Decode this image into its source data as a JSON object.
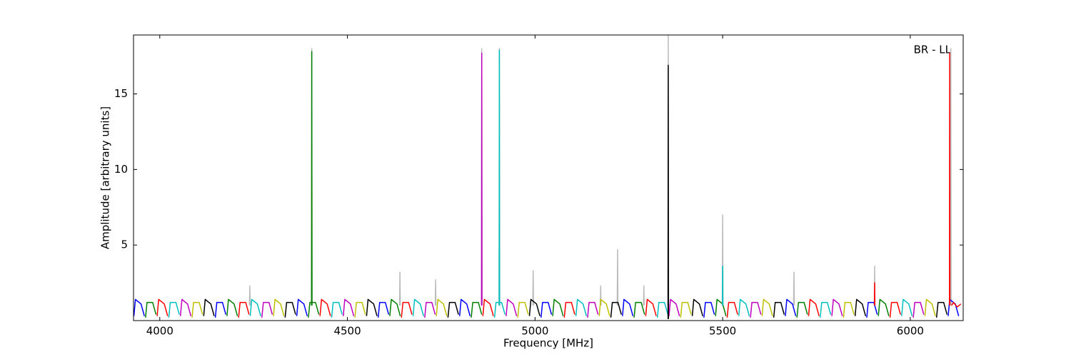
{
  "chart_data": {
    "type": "line",
    "xlabel": "Frequency [MHz]",
    "ylabel": "Amplitude [arbitrary units]",
    "annotation": "BR - LL",
    "xlim": [
      3930,
      6141
    ],
    "xticks": [
      4000,
      4500,
      5000,
      5500,
      6000
    ],
    "ylim": [
      0,
      18.9
    ],
    "yticks": [
      5,
      10,
      15
    ],
    "series": [
      {
        "color": "#bbbbbb",
        "x": [
          4239,
          4240,
          4241,
          null,
          4404,
          4405,
          4406,
          null,
          4639,
          4640,
          4641,
          null,
          4734,
          4735,
          4736,
          null,
          4857,
          4858,
          4859,
          null,
          4904,
          4905,
          4906,
          null,
          4994,
          4995,
          4996,
          null,
          5174,
          5175,
          5176,
          null,
          5219,
          5220,
          5221,
          null,
          5289,
          5290,
          5291,
          null,
          5354,
          5355,
          5356,
          null,
          5499,
          5500,
          5501,
          null,
          5689,
          5690,
          5691,
          null,
          5904,
          5905,
          5906,
          null,
          6107,
          6108,
          6109
        ],
        "values": [
          1.0,
          2.3,
          1.0,
          null,
          1.0,
          18.0,
          1.0,
          null,
          1.0,
          3.2,
          1.0,
          null,
          1.0,
          2.7,
          1.0,
          null,
          1.0,
          18.0,
          1.0,
          null,
          1.0,
          18.0,
          1.0,
          null,
          1.0,
          3.3,
          1.0,
          null,
          1.0,
          2.3,
          1.0,
          null,
          1.0,
          4.7,
          1.0,
          null,
          1.0,
          2.3,
          1.0,
          null,
          1.0,
          18.9,
          1.0,
          null,
          1.0,
          7.0,
          1.0,
          null,
          1.0,
          3.2,
          1.0,
          null,
          1.0,
          3.6,
          1.0,
          null,
          1.0,
          18.0,
          1.0
        ]
      },
      {
        "color": "#0000ff",
        "x": [
          3931,
          3935,
          3950,
          3959,
          null,
          4148,
          4152,
          4167,
          4176,
          null,
          4365,
          4369,
          4384,
          4393,
          null,
          4582,
          4586,
          4601,
          4610,
          null,
          4799,
          4803,
          4818,
          4827,
          null,
          5016,
          5020,
          5035,
          5044,
          null,
          5233,
          5237,
          5252,
          5261,
          null,
          5450,
          5454,
          5469,
          5478,
          null,
          5667,
          5671,
          5686,
          5695,
          null,
          5884,
          5888,
          5903,
          5912,
          null,
          6101,
          6105,
          6120,
          6129
        ],
        "values": [
          0.3,
          1.4,
          1.1,
          0.3,
          null,
          0.2,
          1.2,
          1.2,
          0.4,
          null,
          0.3,
          1.4,
          1.1,
          0.3,
          null,
          0.2,
          1.2,
          1.2,
          0.4,
          null,
          0.3,
          1.4,
          1.1,
          0.3,
          null,
          0.2,
          1.2,
          1.2,
          0.4,
          null,
          0.3,
          1.4,
          1.1,
          0.3,
          null,
          0.2,
          1.2,
          1.2,
          0.4,
          null,
          0.3,
          1.4,
          1.1,
          0.3,
          null,
          0.2,
          1.2,
          1.2,
          0.4,
          null,
          0.3,
          1.4,
          1.1,
          0.3
        ]
      },
      {
        "color": "#008000",
        "x": [
          3962,
          3966,
          3981,
          3990,
          null,
          4179,
          4183,
          4198,
          4207,
          null,
          4396,
          4400,
          4415,
          4424,
          null,
          4613,
          4617,
          4632,
          4641,
          null,
          4830,
          4834,
          4849,
          4858,
          null,
          5047,
          5051,
          5066,
          5075,
          null,
          5264,
          5268,
          5283,
          5292,
          null,
          5481,
          5485,
          5500,
          5509,
          null,
          5698,
          5702,
          5717,
          5726,
          null,
          5915,
          5919,
          5934,
          5943,
          null,
          4404.5,
          4405,
          4405.5
        ],
        "values": [
          0.2,
          1.2,
          1.2,
          0.4,
          null,
          0.3,
          1.4,
          1.1,
          0.3,
          null,
          0.2,
          1.2,
          1.2,
          0.4,
          null,
          0.3,
          1.4,
          1.1,
          0.3,
          null,
          0.2,
          1.2,
          1.2,
          0.4,
          null,
          0.3,
          1.4,
          1.1,
          0.3,
          null,
          0.2,
          1.2,
          1.2,
          0.4,
          null,
          0.3,
          1.4,
          1.1,
          0.3,
          null,
          0.2,
          1.2,
          1.2,
          0.4,
          null,
          0.3,
          1.4,
          1.1,
          0.3,
          null,
          1.0,
          17.8,
          1.0
        ]
      },
      {
        "color": "#ff0000",
        "x": [
          3993,
          3997,
          4012,
          4021,
          null,
          4210,
          4214,
          4229,
          4238,
          null,
          4427,
          4431,
          4446,
          4455,
          null,
          4644,
          4648,
          4663,
          4672,
          null,
          4861,
          4865,
          4880,
          4889,
          null,
          5078,
          5082,
          5097,
          5106,
          null,
          5295,
          5299,
          5314,
          5323,
          null,
          5512,
          5516,
          5531,
          5540,
          null,
          5729,
          5733,
          5748,
          5757,
          null,
          5946,
          5950,
          5965,
          5974,
          null,
          5904.5,
          5905,
          5905.5,
          null,
          6104.5,
          6105,
          6105.5,
          null,
          6110,
          6115,
          6125,
          6135
        ],
        "values": [
          0.3,
          1.4,
          1.1,
          0.3,
          null,
          0.2,
          1.2,
          1.2,
          0.4,
          null,
          0.3,
          1.4,
          1.1,
          0.3,
          null,
          0.2,
          1.2,
          1.2,
          0.4,
          null,
          0.3,
          1.4,
          1.1,
          0.3,
          null,
          0.2,
          1.2,
          1.2,
          0.4,
          null,
          0.3,
          1.4,
          1.1,
          0.3,
          null,
          0.2,
          1.2,
          1.2,
          0.4,
          null,
          0.3,
          1.4,
          1.1,
          0.3,
          null,
          0.2,
          1.2,
          1.2,
          0.4,
          null,
          1.0,
          2.5,
          1.0,
          null,
          1.0,
          17.7,
          1.0,
          null,
          1.0,
          1.2,
          0.9,
          1.1
        ]
      },
      {
        "color": "#00bfbf",
        "x": [
          4024,
          4028,
          4043,
          4052,
          null,
          4241,
          4245,
          4260,
          4269,
          null,
          4458,
          4462,
          4477,
          4486,
          null,
          4675,
          4679,
          4694,
          4703,
          null,
          4892,
          4896,
          4911,
          4920,
          null,
          5109,
          5113,
          5128,
          5137,
          null,
          5326,
          5330,
          5345,
          5354,
          null,
          5543,
          5547,
          5562,
          5571,
          null,
          5760,
          5764,
          5779,
          5788,
          null,
          5977,
          5981,
          5996,
          6005,
          null,
          4904.5,
          4905,
          4905.5,
          null,
          5499.5,
          5500,
          5500.5
        ],
        "values": [
          0.2,
          1.2,
          1.2,
          0.4,
          null,
          0.3,
          1.4,
          1.1,
          0.3,
          null,
          0.2,
          1.2,
          1.2,
          0.4,
          null,
          0.3,
          1.4,
          1.1,
          0.3,
          null,
          0.2,
          1.2,
          1.2,
          0.4,
          null,
          0.3,
          1.4,
          1.1,
          0.3,
          null,
          0.2,
          1.2,
          1.2,
          0.4,
          null,
          0.3,
          1.4,
          1.1,
          0.3,
          null,
          0.2,
          1.2,
          1.2,
          0.4,
          null,
          0.3,
          1.4,
          1.1,
          0.3,
          null,
          1.0,
          17.9,
          1.0,
          null,
          1.0,
          3.6,
          1.0
        ]
      },
      {
        "color": "#bf00bf",
        "x": [
          4055,
          4059,
          4074,
          4083,
          null,
          4272,
          4276,
          4291,
          4300,
          null,
          4489,
          4493,
          4508,
          4517,
          null,
          4706,
          4710,
          4725,
          4734,
          null,
          4923,
          4927,
          4942,
          4951,
          null,
          5140,
          5144,
          5159,
          5168,
          null,
          5357,
          5361,
          5376,
          5385,
          null,
          5574,
          5578,
          5593,
          5602,
          null,
          5791,
          5795,
          5810,
          5819,
          null,
          6008,
          6012,
          6027,
          6036,
          null,
          4857.5,
          4858,
          4858.5
        ],
        "values": [
          0.3,
          1.4,
          1.1,
          0.3,
          null,
          0.2,
          1.2,
          1.2,
          0.4,
          null,
          0.3,
          1.4,
          1.1,
          0.3,
          null,
          0.2,
          1.2,
          1.2,
          0.4,
          null,
          0.3,
          1.4,
          1.1,
          0.3,
          null,
          0.2,
          1.2,
          1.2,
          0.4,
          null,
          0.3,
          1.4,
          1.1,
          0.3,
          null,
          0.2,
          1.2,
          1.2,
          0.4,
          null,
          0.3,
          1.4,
          1.1,
          0.3,
          null,
          0.2,
          1.2,
          1.2,
          0.4,
          null,
          1.0,
          17.7,
          1.0
        ]
      },
      {
        "color": "#bfbf00",
        "x": [
          4086,
          4090,
          4105,
          4114,
          null,
          4303,
          4307,
          4322,
          4331,
          null,
          4520,
          4524,
          4539,
          4548,
          null,
          4737,
          4741,
          4756,
          4765,
          null,
          4954,
          4958,
          4973,
          4982,
          null,
          5171,
          5175,
          5190,
          5199,
          null,
          5388,
          5392,
          5407,
          5416,
          null,
          5605,
          5609,
          5624,
          5633,
          null,
          5822,
          5826,
          5841,
          5850,
          null,
          6039,
          6043,
          6058,
          6067
        ],
        "values": [
          0.2,
          1.2,
          1.2,
          0.4,
          null,
          0.3,
          1.4,
          1.1,
          0.3,
          null,
          0.2,
          1.2,
          1.2,
          0.4,
          null,
          0.3,
          1.4,
          1.1,
          0.3,
          null,
          0.2,
          1.2,
          1.2,
          0.4,
          null,
          0.3,
          1.4,
          1.1,
          0.3,
          null,
          0.2,
          1.2,
          1.2,
          0.4,
          null,
          0.3,
          1.4,
          1.1,
          0.3,
          null,
          0.2,
          1.2,
          1.2,
          0.4,
          null,
          0.3,
          1.4,
          1.1,
          0.3
        ]
      },
      {
        "color": "#000000",
        "x": [
          4117,
          4121,
          4136,
          4145,
          null,
          4334,
          4338,
          4353,
          4362,
          null,
          4551,
          4555,
          4570,
          4579,
          null,
          4768,
          4772,
          4787,
          4796,
          null,
          4985,
          4989,
          5004,
          5013,
          null,
          5202,
          5206,
          5221,
          5230,
          null,
          5419,
          5423,
          5438,
          5447,
          null,
          5636,
          5640,
          5655,
          5664,
          null,
          5853,
          5857,
          5872,
          5881,
          null,
          6070,
          6074,
          6089,
          6098,
          null,
          5354.5,
          5355,
          5355.5
        ],
        "values": [
          0.3,
          1.4,
          1.1,
          0.3,
          null,
          0.2,
          1.2,
          1.2,
          0.4,
          null,
          0.3,
          1.4,
          1.1,
          0.3,
          null,
          0.2,
          1.2,
          1.2,
          0.4,
          null,
          0.3,
          1.4,
          1.1,
          0.3,
          null,
          0.2,
          1.2,
          1.2,
          0.4,
          null,
          0.3,
          1.4,
          1.1,
          0.3,
          null,
          0.2,
          1.2,
          1.2,
          0.4,
          null,
          0.3,
          1.4,
          1.1,
          0.3,
          null,
          0.2,
          1.2,
          1.2,
          0.4,
          null,
          0.1,
          16.9,
          0.1
        ]
      }
    ]
  }
}
